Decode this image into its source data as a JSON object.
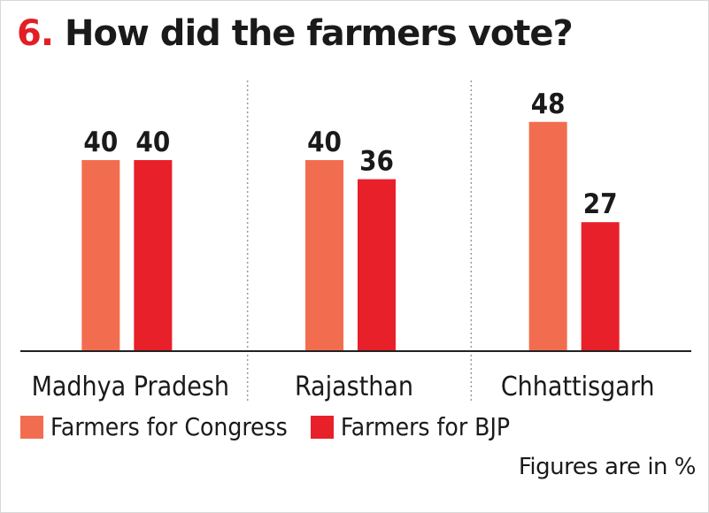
{
  "header": {
    "number": "6.",
    "title": "How did the farmers vote?"
  },
  "footnote": "Figures are in %",
  "colors": {
    "congress": "#f26d50",
    "bjp": "#e8202a",
    "axis": "#222222",
    "divider": "#9a9a9a"
  },
  "chart_data": {
    "type": "bar",
    "categories": [
      "Madhya Pradesh",
      "Rajasthan",
      "Chhattisgarh"
    ],
    "series": [
      {
        "name": "Farmers for Congress",
        "values": [
          40,
          40,
          48
        ],
        "color": "#f26d50"
      },
      {
        "name": "Farmers for BJP",
        "values": [
          40,
          36,
          27
        ],
        "color": "#e8202a"
      }
    ],
    "ylim": [
      0,
      60
    ],
    "unit": "%",
    "grid": false,
    "legend_position": "bottom-left"
  }
}
